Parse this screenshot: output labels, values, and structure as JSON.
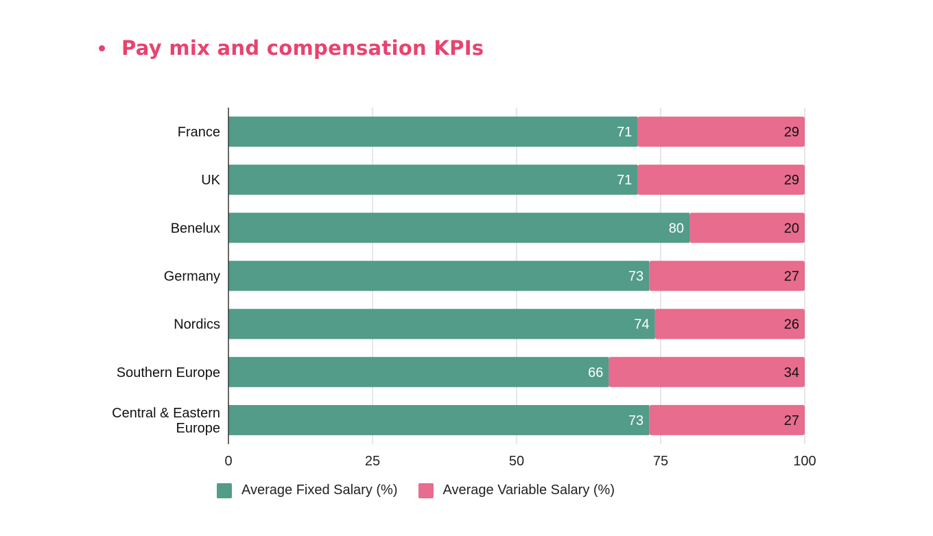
{
  "heading": {
    "text": "Pay mix and compensation KPIs"
  },
  "colors": {
    "accent": "#e8436f",
    "fixed": "#529c89",
    "variable": "#e76c8d"
  },
  "chart_data": {
    "type": "bar",
    "orientation": "horizontal",
    "stacked": true,
    "categories": [
      "France",
      "UK",
      "Benelux",
      "Germany",
      "Nordics",
      "Southern Europe",
      "Central & Eastern Europe"
    ],
    "series": [
      {
        "name": "Average Fixed Salary (%)",
        "color": "#529c89",
        "values": [
          71,
          71,
          80,
          73,
          74,
          66,
          73
        ]
      },
      {
        "name": "Average Variable Salary (%)",
        "color": "#e76c8d",
        "values": [
          29,
          29,
          20,
          27,
          26,
          34,
          27
        ]
      }
    ],
    "xlim": [
      0,
      100
    ],
    "xticks": [
      0,
      25,
      50,
      75,
      100
    ],
    "grid": true,
    "legend_position": "bottom"
  }
}
